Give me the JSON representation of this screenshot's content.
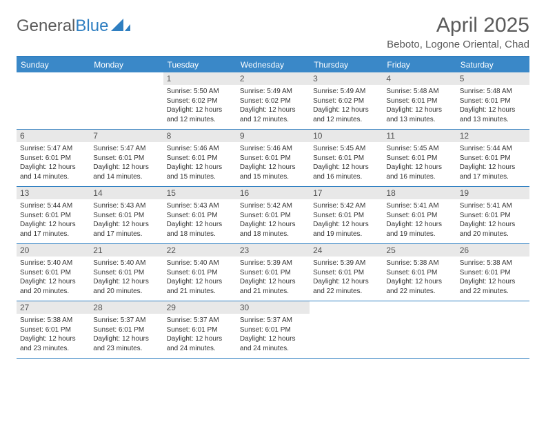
{
  "brand": {
    "part1": "General",
    "part2": "Blue"
  },
  "title": "April 2025",
  "location": "Beboto, Logone Oriental, Chad",
  "colors": {
    "header_bar": "#3a88c8",
    "header_border": "#2f7fc1",
    "daynum_bg": "#e8e8e8",
    "text": "#333333",
    "title_text": "#5a5a5a",
    "dow_text": "#ffffff"
  },
  "fonts": {
    "title_size_pt": 30,
    "location_size_pt": 15,
    "dow_size_pt": 12,
    "daynum_size_pt": 12,
    "body_size_pt": 10
  },
  "days_of_week": [
    "Sunday",
    "Monday",
    "Tuesday",
    "Wednesday",
    "Thursday",
    "Friday",
    "Saturday"
  ],
  "weeks": [
    [
      {
        "n": "",
        "lines": [
          "",
          "",
          "",
          ""
        ]
      },
      {
        "n": "",
        "lines": [
          "",
          "",
          "",
          ""
        ]
      },
      {
        "n": "1",
        "lines": [
          "Sunrise: 5:50 AM",
          "Sunset: 6:02 PM",
          "Daylight: 12 hours",
          "and 12 minutes."
        ]
      },
      {
        "n": "2",
        "lines": [
          "Sunrise: 5:49 AM",
          "Sunset: 6:02 PM",
          "Daylight: 12 hours",
          "and 12 minutes."
        ]
      },
      {
        "n": "3",
        "lines": [
          "Sunrise: 5:49 AM",
          "Sunset: 6:02 PM",
          "Daylight: 12 hours",
          "and 12 minutes."
        ]
      },
      {
        "n": "4",
        "lines": [
          "Sunrise: 5:48 AM",
          "Sunset: 6:01 PM",
          "Daylight: 12 hours",
          "and 13 minutes."
        ]
      },
      {
        "n": "5",
        "lines": [
          "Sunrise: 5:48 AM",
          "Sunset: 6:01 PM",
          "Daylight: 12 hours",
          "and 13 minutes."
        ]
      }
    ],
    [
      {
        "n": "6",
        "lines": [
          "Sunrise: 5:47 AM",
          "Sunset: 6:01 PM",
          "Daylight: 12 hours",
          "and 14 minutes."
        ]
      },
      {
        "n": "7",
        "lines": [
          "Sunrise: 5:47 AM",
          "Sunset: 6:01 PM",
          "Daylight: 12 hours",
          "and 14 minutes."
        ]
      },
      {
        "n": "8",
        "lines": [
          "Sunrise: 5:46 AM",
          "Sunset: 6:01 PM",
          "Daylight: 12 hours",
          "and 15 minutes."
        ]
      },
      {
        "n": "9",
        "lines": [
          "Sunrise: 5:46 AM",
          "Sunset: 6:01 PM",
          "Daylight: 12 hours",
          "and 15 minutes."
        ]
      },
      {
        "n": "10",
        "lines": [
          "Sunrise: 5:45 AM",
          "Sunset: 6:01 PM",
          "Daylight: 12 hours",
          "and 16 minutes."
        ]
      },
      {
        "n": "11",
        "lines": [
          "Sunrise: 5:45 AM",
          "Sunset: 6:01 PM",
          "Daylight: 12 hours",
          "and 16 minutes."
        ]
      },
      {
        "n": "12",
        "lines": [
          "Sunrise: 5:44 AM",
          "Sunset: 6:01 PM",
          "Daylight: 12 hours",
          "and 17 minutes."
        ]
      }
    ],
    [
      {
        "n": "13",
        "lines": [
          "Sunrise: 5:44 AM",
          "Sunset: 6:01 PM",
          "Daylight: 12 hours",
          "and 17 minutes."
        ]
      },
      {
        "n": "14",
        "lines": [
          "Sunrise: 5:43 AM",
          "Sunset: 6:01 PM",
          "Daylight: 12 hours",
          "and 17 minutes."
        ]
      },
      {
        "n": "15",
        "lines": [
          "Sunrise: 5:43 AM",
          "Sunset: 6:01 PM",
          "Daylight: 12 hours",
          "and 18 minutes."
        ]
      },
      {
        "n": "16",
        "lines": [
          "Sunrise: 5:42 AM",
          "Sunset: 6:01 PM",
          "Daylight: 12 hours",
          "and 18 minutes."
        ]
      },
      {
        "n": "17",
        "lines": [
          "Sunrise: 5:42 AM",
          "Sunset: 6:01 PM",
          "Daylight: 12 hours",
          "and 19 minutes."
        ]
      },
      {
        "n": "18",
        "lines": [
          "Sunrise: 5:41 AM",
          "Sunset: 6:01 PM",
          "Daylight: 12 hours",
          "and 19 minutes."
        ]
      },
      {
        "n": "19",
        "lines": [
          "Sunrise: 5:41 AM",
          "Sunset: 6:01 PM",
          "Daylight: 12 hours",
          "and 20 minutes."
        ]
      }
    ],
    [
      {
        "n": "20",
        "lines": [
          "Sunrise: 5:40 AM",
          "Sunset: 6:01 PM",
          "Daylight: 12 hours",
          "and 20 minutes."
        ]
      },
      {
        "n": "21",
        "lines": [
          "Sunrise: 5:40 AM",
          "Sunset: 6:01 PM",
          "Daylight: 12 hours",
          "and 20 minutes."
        ]
      },
      {
        "n": "22",
        "lines": [
          "Sunrise: 5:40 AM",
          "Sunset: 6:01 PM",
          "Daylight: 12 hours",
          "and 21 minutes."
        ]
      },
      {
        "n": "23",
        "lines": [
          "Sunrise: 5:39 AM",
          "Sunset: 6:01 PM",
          "Daylight: 12 hours",
          "and 21 minutes."
        ]
      },
      {
        "n": "24",
        "lines": [
          "Sunrise: 5:39 AM",
          "Sunset: 6:01 PM",
          "Daylight: 12 hours",
          "and 22 minutes."
        ]
      },
      {
        "n": "25",
        "lines": [
          "Sunrise: 5:38 AM",
          "Sunset: 6:01 PM",
          "Daylight: 12 hours",
          "and 22 minutes."
        ]
      },
      {
        "n": "26",
        "lines": [
          "Sunrise: 5:38 AM",
          "Sunset: 6:01 PM",
          "Daylight: 12 hours",
          "and 22 minutes."
        ]
      }
    ],
    [
      {
        "n": "27",
        "lines": [
          "Sunrise: 5:38 AM",
          "Sunset: 6:01 PM",
          "Daylight: 12 hours",
          "and 23 minutes."
        ]
      },
      {
        "n": "28",
        "lines": [
          "Sunrise: 5:37 AM",
          "Sunset: 6:01 PM",
          "Daylight: 12 hours",
          "and 23 minutes."
        ]
      },
      {
        "n": "29",
        "lines": [
          "Sunrise: 5:37 AM",
          "Sunset: 6:01 PM",
          "Daylight: 12 hours",
          "and 24 minutes."
        ]
      },
      {
        "n": "30",
        "lines": [
          "Sunrise: 5:37 AM",
          "Sunset: 6:01 PM",
          "Daylight: 12 hours",
          "and 24 minutes."
        ]
      },
      {
        "n": "",
        "lines": [
          "",
          "",
          "",
          ""
        ]
      },
      {
        "n": "",
        "lines": [
          "",
          "",
          "",
          ""
        ]
      },
      {
        "n": "",
        "lines": [
          "",
          "",
          "",
          ""
        ]
      }
    ]
  ]
}
